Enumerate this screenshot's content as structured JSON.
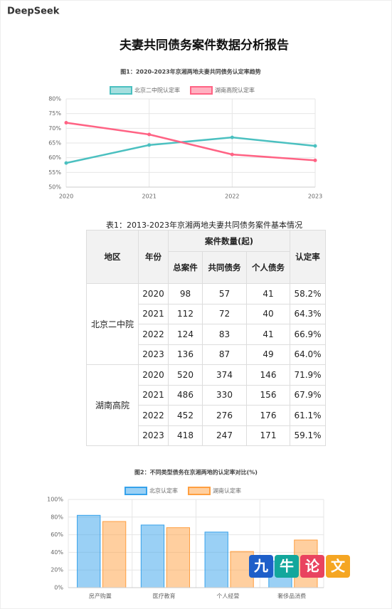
{
  "header": {
    "brand": "DeepSeek"
  },
  "title": "夫妻共同债务案件数据分析报告",
  "chart_data": [
    {
      "type": "line",
      "title": "图1：2020-2023年京湘两地夫妻共同债务认定率趋势",
      "categories": [
        "2020",
        "2021",
        "2022",
        "2023"
      ],
      "series": [
        {
          "name": "北京二中院认定率",
          "color": "#4bc0c0",
          "values": [
            58.2,
            64.3,
            66.9,
            64.0
          ]
        },
        {
          "name": "湖南高院认定率",
          "color": "#ff6384",
          "values": [
            71.9,
            67.9,
            61.1,
            59.1
          ]
        }
      ],
      "ylim": [
        50,
        80
      ],
      "yticks": [
        {
          "value": 50,
          "label": "50%"
        },
        {
          "value": 55,
          "label": "55%"
        },
        {
          "value": 60,
          "label": "60%"
        },
        {
          "value": 65,
          "label": "65%"
        },
        {
          "value": 70,
          "label": "70%"
        },
        {
          "value": 75,
          "label": "75%"
        },
        {
          "value": 80,
          "label": "80%"
        }
      ],
      "grid": true,
      "legend": "top"
    },
    {
      "type": "bar",
      "title": "图2：不同类型债务在京湘两地的认定率对比(%)",
      "categories": [
        "房产购置",
        "医疗教育",
        "个人经营",
        "奢侈品消费"
      ],
      "series": [
        {
          "name": "北京认定率",
          "color": "#36a2eb",
          "values": [
            82,
            71,
            63,
            30
          ]
        },
        {
          "name": "湖南认定率",
          "color": "#ff9f40",
          "values": [
            75,
            68,
            41,
            54
          ]
        }
      ],
      "ylim": [
        0,
        100
      ],
      "yticks": [
        {
          "value": 0,
          "label": "0%"
        },
        {
          "value": 20,
          "label": "20%"
        },
        {
          "value": 40,
          "label": "40%"
        },
        {
          "value": 60,
          "label": "60%"
        },
        {
          "value": 80,
          "label": "80%"
        },
        {
          "value": 100,
          "label": "100%"
        }
      ],
      "grid": true,
      "legend": "top"
    }
  ],
  "table": {
    "caption": "表1：2013-2023年京湘两地夫妻共同债务案件基本情况",
    "headers": {
      "region": "地区",
      "year": "年份",
      "count": "案件数量(起)",
      "total": "总案件",
      "joint": "共同债务",
      "personal": "个人债务",
      "rate": "认定率"
    },
    "groups": [
      {
        "region": "北京二中院",
        "rows": [
          [
            "2020",
            98,
            57,
            41,
            "58.2%"
          ],
          [
            "2021",
            112,
            72,
            40,
            "64.3%"
          ],
          [
            "2022",
            124,
            83,
            41,
            "66.9%"
          ],
          [
            "2023",
            136,
            87,
            49,
            "64.0%"
          ]
        ]
      },
      {
        "region": "湖南高院",
        "rows": [
          [
            "2020",
            520,
            374,
            146,
            "71.9%"
          ],
          [
            "2021",
            486,
            330,
            156,
            "67.9%"
          ],
          [
            "2022",
            452,
            276,
            176,
            "61.1%"
          ],
          [
            "2023",
            418,
            247,
            171,
            "59.1%"
          ]
        ]
      }
    ]
  },
  "watermark": [
    "九",
    "牛",
    "论",
    "文"
  ]
}
